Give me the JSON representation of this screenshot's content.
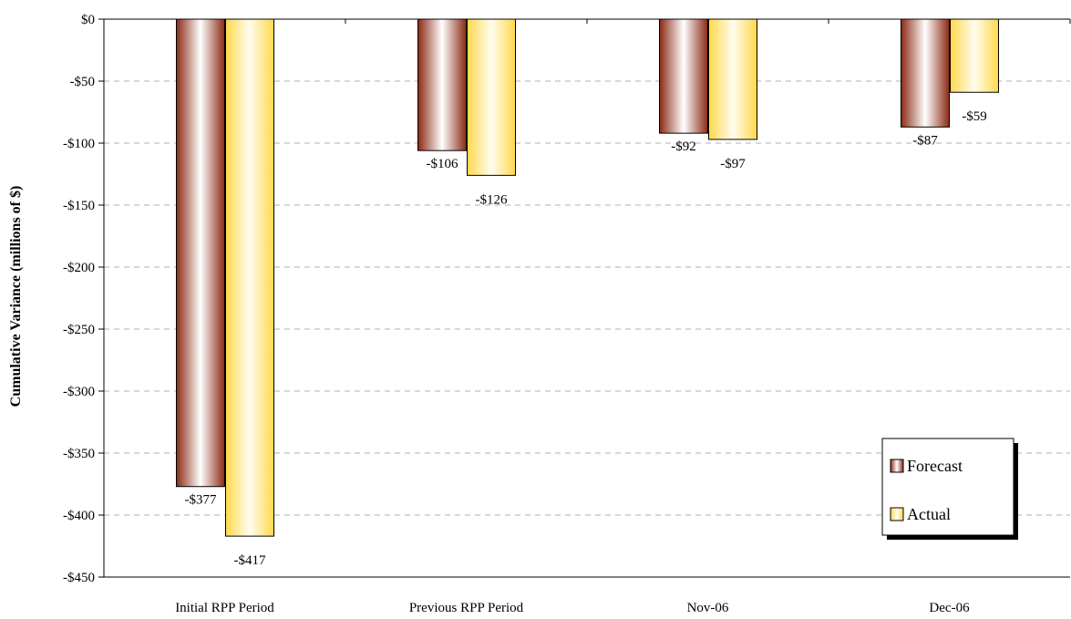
{
  "chart_data": {
    "type": "bar",
    "categories": [
      "Initial RPP Period",
      "Previous RPP Period",
      "Nov-06",
      "Dec-06"
    ],
    "series": [
      {
        "name": "Forecast",
        "values": [
          -377,
          -106,
          -92,
          -87
        ],
        "labels": [
          "-$377",
          "-$106",
          "-$92",
          "-$87"
        ]
      },
      {
        "name": "Actual",
        "values": [
          -417,
          -126,
          -97,
          -59
        ],
        "labels": [
          "-$417",
          "-$126",
          "-$97",
          "-$59"
        ]
      }
    ],
    "title": "",
    "xlabel": "",
    "ylabel": "Cumulative Variance (millions of $)",
    "ylim": [
      -450,
      0
    ],
    "yticks": [
      0,
      -50,
      -100,
      -150,
      -200,
      -250,
      -300,
      -350,
      -400,
      -450
    ],
    "ytick_labels": [
      "$0",
      "-$50",
      "-$100",
      "-$150",
      "-$200",
      "-$250",
      "-$300",
      "-$350",
      "-$400",
      "-$450"
    ],
    "grid": true,
    "legend_position": "bottom-right",
    "colors": {
      "Forecast": "#8b2a14",
      "Actual": "#ffd84a"
    }
  }
}
